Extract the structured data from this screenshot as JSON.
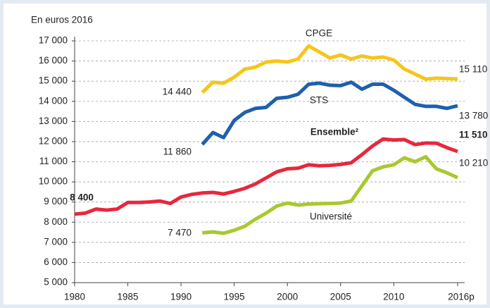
{
  "chart_data": {
    "type": "line",
    "title": "En euros 2016",
    "x": [
      1980,
      1981,
      1982,
      1983,
      1984,
      1985,
      1986,
      1987,
      1988,
      1989,
      1990,
      1991,
      1992,
      1993,
      1994,
      1995,
      1996,
      1997,
      1998,
      1999,
      2000,
      2001,
      2002,
      2003,
      2004,
      2005,
      2006,
      2007,
      2008,
      2009,
      2010,
      2011,
      2012,
      2013,
      2014,
      2015,
      2016
    ],
    "xlim": [
      1980,
      2016
    ],
    "xticks": [
      1980,
      1985,
      1990,
      1995,
      2000,
      2005,
      2010,
      {
        "value": 2016,
        "label": "2016p"
      }
    ],
    "ylim": [
      5000,
      17000
    ],
    "yticks": [
      {
        "value": 5000,
        "label": "5 000"
      },
      {
        "value": 6000,
        "label": "6 000"
      },
      {
        "value": 7000,
        "label": "7 000"
      },
      {
        "value": 8000,
        "label": "8 000"
      },
      {
        "value": 9000,
        "label": "9 000"
      },
      {
        "value": 10000,
        "label": "10 000"
      },
      {
        "value": 11000,
        "label": "11 000"
      },
      {
        "value": 12000,
        "label": "12 000"
      },
      {
        "value": 13000,
        "label": "13 000"
      },
      {
        "value": 14000,
        "label": "14 000"
      },
      {
        "value": 15000,
        "label": "15 000"
      },
      {
        "value": 16000,
        "label": "16 000"
      },
      {
        "value": 17000,
        "label": "17 000"
      }
    ],
    "grid": true,
    "series": [
      {
        "name": "CPGE",
        "color": "#f6c51b",
        "values": [
          null,
          null,
          null,
          null,
          null,
          null,
          null,
          null,
          null,
          null,
          null,
          null,
          14440,
          14950,
          14900,
          15200,
          15600,
          15700,
          15950,
          16000,
          15950,
          16100,
          16750,
          16450,
          16150,
          16300,
          16100,
          16250,
          16150,
          16200,
          16050,
          15600,
          15350,
          15100,
          15150,
          15130,
          15110
        ],
        "value_labels": [
          null,
          null,
          null,
          null,
          null,
          null,
          null,
          null,
          null,
          null,
          null,
          null,
          "14 440",
          null,
          null,
          null,
          null,
          null,
          null,
          null,
          null,
          null,
          null,
          null,
          null,
          null,
          null,
          null,
          null,
          null,
          null,
          null,
          null,
          null,
          null,
          null,
          "15 110"
        ]
      },
      {
        "name": "STS",
        "color": "#1f5fae",
        "values": [
          null,
          null,
          null,
          null,
          null,
          null,
          null,
          null,
          null,
          null,
          null,
          null,
          11860,
          12450,
          12200,
          13050,
          13450,
          13650,
          13700,
          14150,
          14200,
          14350,
          14850,
          14900,
          14800,
          14780,
          14950,
          14600,
          14850,
          14850,
          14550,
          14200,
          13850,
          13750,
          13750,
          13650,
          13780
        ],
        "value_labels": [
          null,
          null,
          null,
          null,
          null,
          null,
          null,
          null,
          null,
          null,
          null,
          null,
          "11 860",
          null,
          null,
          null,
          null,
          null,
          null,
          null,
          null,
          null,
          null,
          null,
          null,
          null,
          null,
          null,
          null,
          null,
          null,
          null,
          null,
          null,
          null,
          null,
          "13 780"
        ]
      },
      {
        "name": "Ensemble²",
        "color": "#e8273d",
        "values": [
          8400,
          8450,
          8650,
          8600,
          8650,
          8980,
          8980,
          9000,
          9050,
          8930,
          9250,
          9380,
          9450,
          9480,
          9400,
          9530,
          9680,
          9900,
          10200,
          10500,
          10650,
          10680,
          10850,
          10800,
          10820,
          10870,
          10950,
          11350,
          11780,
          12130,
          12080,
          12100,
          11850,
          11930,
          11920,
          11700,
          11510
        ],
        "value_labels": [
          "8 400",
          null,
          null,
          null,
          null,
          null,
          null,
          null,
          null,
          null,
          null,
          null,
          null,
          null,
          null,
          null,
          null,
          null,
          null,
          null,
          null,
          null,
          null,
          null,
          null,
          null,
          null,
          null,
          null,
          null,
          null,
          null,
          null,
          null,
          null,
          null,
          "11 510"
        ]
      },
      {
        "name": "Université",
        "color": "#a8c92e",
        "values": [
          null,
          null,
          null,
          null,
          null,
          null,
          null,
          null,
          null,
          null,
          null,
          null,
          7470,
          7520,
          7450,
          7600,
          7800,
          8150,
          8450,
          8800,
          8950,
          8850,
          8900,
          8920,
          8930,
          8950,
          9050,
          9800,
          10550,
          10750,
          10850,
          11200,
          11000,
          11250,
          10650,
          10450,
          10210
        ],
        "value_labels": [
          null,
          null,
          null,
          null,
          null,
          null,
          null,
          null,
          null,
          null,
          null,
          null,
          "7 470",
          null,
          null,
          null,
          null,
          null,
          null,
          null,
          null,
          null,
          null,
          null,
          null,
          null,
          null,
          null,
          null,
          null,
          null,
          null,
          null,
          null,
          null,
          null,
          "10 210"
        ]
      }
    ]
  }
}
